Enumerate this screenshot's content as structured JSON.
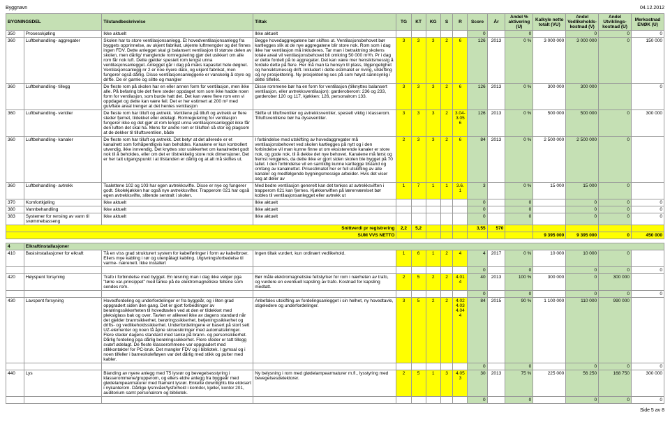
{
  "page": {
    "title": "Byggnavn",
    "date": "04.12.2012",
    "footer": "Side 5 av 8"
  },
  "header": {
    "col_name": "BYGNINGSDEL",
    "col_desc": "Tilstandbeskrivelse",
    "col_tiltak": "Tiltak",
    "tg": "TG",
    "kt": "KT",
    "kg": "KG",
    "s": "S",
    "r": "R",
    "score": "Score",
    "ar": "År",
    "andel": "Andel % aktivering (U)",
    "kalkyle": "Kalkyle netto totalt (VU)",
    "vedl": "Andel Vedlikeholds-kostnad (V)",
    "utv": "Andel Utviklings-kostnad (U)",
    "merk": "Merkostnad ENØK (U)"
  },
  "rows": [
    {
      "id": "350",
      "name": "Prosesskjøling",
      "desc": "Ikke aktuelt",
      "tiltak": "Ikke aktuelt",
      "tg": "",
      "kt": "",
      "kg": "",
      "s": "",
      "r": "",
      "score": "0",
      "ar": "",
      "andel": "0",
      "kalk": "",
      "vedl": "0",
      "utv": "0",
      "merk": "0",
      "yellow_tg": false
    },
    {
      "id": "360",
      "name": "Luftbehandling- aggregater",
      "desc": "Skolen har to store ventilasjonsanlegg. Et hovedventilasjonsanlegg fra byggets opprinnelse, av ukjent fabrikat, ukjente luftmengder og det finnes ingen FDV. Dette anlegget skal gi balansert ventilasjon til største delen av skolen, men dårlig/ manglende romregulering gjør det usikkert om alle rom får nok luft. Dette gjelder spesielt rom lengst unna ventilasjonsanlegget. Anlegget går i dag på maks kapasitet hele døgnet. Ventilasjonsanlegg nr 2 er noe nyere dato, og ukjent fabrikat, men fungerer også dårlig. Disse ventilasjonsanleggene er vanskelig å styre og drifte. De er gamle og slitte og mangler",
      "tiltak": "Begge hovedaggregatene bør skiftes ut. Ventilasjonsbehovet bør kartlegges slik at de nye aggregatene blir store nok. Rom som i dag ikke har ventilasjon må inkluderes. Tar man i betraktning skolens totale areal vil ventilasjonsbehovet bli omkring 50 000 m³/h. Pr i dag er dette fordelt på to aggregater. Det kan være mer hensiktsmessig å fordele dette på flere. Her må man ta hensyn til plass, tilgjengelighet og hensiktsmessig drift. Inkludert i dette estimatet er riving, utskifting og ny prosjektering. Ny prosjektering ses på som høyst sannsynlig i dette tilfellet.",
      "tg": "3",
      "kt": "3",
      "kg": "3",
      "s": "2",
      "r": "6",
      "score": "126",
      "ar": "2013",
      "andel": "0 %",
      "kalk": "3 000 000",
      "vedl": "3 000 000",
      "utv": "0",
      "merk": "150 000",
      "yellow_tg": true
    },
    {
      "id": "360",
      "name": "Luftbehandling- tillegg",
      "desc": "De fleste rom på skolen har en eller annen form for ventilasjon, men ikke alle. På befaring ble det flere steder oppdaget rom som ikke hadde noen form for ventilasjon, som burde hatt det. Det kan være flere rom enn vi oppdaget og dette kan være feil. Det er her estimert at 200 m² med gulvflate areal trenger at det hentes ventilasjon",
      "tiltak": "Disse rommene bør ha en form for ventilasjon (tilknyttes balansert ventilasjon, eller avtrekksventilasjon): garderoberom: 236 og 233, garderober 120 og 117, kjøkken: 126, personalrom 133.",
      "tg": "3",
      "kt": "3",
      "kg": "3",
      "s": "2",
      "r": "6",
      "score": "126",
      "ar": "2013",
      "andel": "0 %",
      "kalk": "300 000",
      "vedl": "300 000",
      "utv": "",
      "merk": "0",
      "yellow_tg": true
    },
    {
      "id": "360",
      "name": "Luftbehandling- ventiler",
      "desc": "De fleste rom har tilluft og avtrekk. Ventilene på tilluft og avtrekk er flere steder fjernet, tildekket eller ødelagt. Romregulering for ventilasjon fungerer ikke og det gjør at rom lengst unna ventilasjonsanlegget ikke får den luften det skal ha. Mens for andre rom er tilluften så stor og plagsom at de dekker til tilluftsventilen, både",
      "tiltak": "Skifte ut tilluftventiler og avtrekksventiler, spesielt viktig i klasserom. Tilluftsventilene bør ha dyseventiler.",
      "tg": "3",
      "kt": "3",
      "kg": "3",
      "s": "2",
      "r": "6",
      "score": "126",
      "ar": "2013",
      "andel": "0 %",
      "kalk": "500 000",
      "vedl": "500 000",
      "utv": "0",
      "merk": "300 000",
      "yellow_tg": true,
      "r_note": "3.04-3.05"
    },
    {
      "id": "360",
      "name": "Luftbehandling- kanaler",
      "desc": "De fleste rom har tilluft og avtrekk. Det betyr at det allerede er et kanalnett som forhåpentligvis kan beholdes. Kanalene er kun kontrollert utvendig, ikke innvendig. Det knyttes stor usikkerhet om kanalnettet godt nok til å beholdes, eller om det er tilstrekkelig store nok dimensjoner. Det er her tatt utgangspunkt i at tilstanden er dårlig og at alt må skiftes ut.",
      "tiltak": "I forbindelse med utskifting av hovedaggregater må ventilasjonsbehovet ved skolen kartlegges på nytt og i den forbindelse vil man kunne finne ut om eksisterende kanaler er store nok, og gode nok, til å dekke det nye behovet. Kanalene må først og fremst rengjøres, da dette ikke er gjort siden skolen ble bygget på 70 tallet. I den forbindelse vil en samtidig kunne kartlegge tilstand og omfang av kanalnettet. Prisestimatet her er full utskifting av alle kanaler og medfølgende bygningsmessige arbeider. Hvis det viser seg at deler av",
      "tg": "2",
      "kt": "3",
      "kg": "3",
      "s": "2",
      "r": "6",
      "score": "84",
      "ar": "2013",
      "andel": "0 %",
      "kalk": "2 500 000",
      "vedl": "2 500 000",
      "utv": "0",
      "merk": "",
      "yellow_tg": true
    },
    {
      "id": "360",
      "name": "Luftbehandling- avtrekk",
      "desc": "Toalettene 102 og 103 har egen avtrekksvifte. Disse er nye og fungerer godt. Skolekjøkken har også nye avtrekksvifter. Trapperom 021 har også egen avtrekksvifte, slitende sentralt i skolen.",
      "tiltak": "Med bedre ventilasjon generelt kan det tenkes at avtrekksviften i trapperom 021 kan fjernes. Kjøkkenviften på lærerværelset bør kobles til ventilasjonsanlegget eller avtrekk ut",
      "tg": "1",
      "kt": "7",
      "kg": "1",
      "s": "1",
      "r": "1",
      "score": "3",
      "ar": "",
      "andel": "0 %",
      "kalk": "15 000",
      "vedl": "15 000",
      "utv": "0",
      "merk": "",
      "yellow_tg": true,
      "r_note": "3.6."
    },
    {
      "id": "370",
      "name": "Komfortkjøling",
      "desc": "Ikke aktuelt",
      "tiltak": "Ikke aktuelt",
      "tg": "",
      "kt": "",
      "kg": "",
      "s": "",
      "r": "",
      "score": "0",
      "ar": "",
      "andel": "0",
      "kalk": "",
      "vedl": "0",
      "utv": "0",
      "merk": "0",
      "yellow_tg": false
    },
    {
      "id": "380",
      "name": "Vannbehandling",
      "desc": "Ikke aktuelt",
      "tiltak": "Ikke aktuelt",
      "tg": "",
      "kt": "",
      "kg": "",
      "s": "",
      "r": "",
      "score": "0",
      "ar": "",
      "andel": "0",
      "kalk": "",
      "vedl": "0",
      "utv": "0",
      "merk": "0",
      "yellow_tg": false
    },
    {
      "id": "383",
      "name": "Systemer for rensing av vann til svømmebasseng",
      "desc": "Ikke aktuelt",
      "tiltak": "Ikke aktuelt",
      "tg": "",
      "kt": "",
      "kg": "",
      "s": "",
      "r": "",
      "score": "0",
      "ar": "",
      "andel": "0",
      "kalk": "",
      "vedl": "0",
      "utv": "0",
      "merk": "0",
      "yellow_tg": false
    }
  ],
  "sum_section": {
    "snitt_label": "Snittverdi pr registrering",
    "sum_label": "SUM VVS NETTO",
    "tg": "2,2",
    "kt": "5,2",
    "score": "3,55",
    "r_sum": "570",
    "kalk": "9 395 000",
    "vedl": "9 395 000",
    "utv": "0",
    "merk": "450 000"
  },
  "section4": {
    "id": "4",
    "name": "Elkraftinstallasjoner"
  },
  "rows2": [
    {
      "id": "410",
      "name": "Basisinstallasjoner for elkraft",
      "desc": "Tå en viss grad strukturert system for kabelføringer i form av kabelbroer. Ellers mye kabling i rør og utenpålagt kabling. Utgivningsforbedelse til varme- nærenett. Ikke installert",
      "tiltak": "Ingen tiltak vurdert, kun ordinært vedlikehold.",
      "tg": "1",
      "kt": "6",
      "kg": "1",
      "s": "2",
      "r": "4",
      "score": "4",
      "ar": "2017",
      "andel": "0 %",
      "kalk": "10 000",
      "vedl": "10 000",
      "utv": "0",
      "merk": "",
      "yellow_tg": true
    },
    {
      "id": "420",
      "name": "Høyspent forsyning",
      "desc": "Trafo i forbindelse med bygget. En løsning man i dag ikke velger pga \"tørre var-prinsippet\" med tanke på de elektromagnetiske feltene som sendes rom.",
      "tiltak": "Bør måle elektromagnetiske feltstyrker for rom i nærheten av trafo, og vurdere en eventuell kapsling av trafo. Kostnad for kapsling medtatt.",
      "tg": "2",
      "kt": "5",
      "kg": "2",
      "s": "2",
      "r": "4",
      "score": "40",
      "ar": "2013",
      "andel": "100 %",
      "kalk": "300 000",
      "vedl": "0",
      "utv": "300 000",
      "merk": "",
      "yellow_tg": true,
      "r_note": "4.01"
    },
    {
      "id": "430",
      "name": "Lavspent forsyning",
      "desc": "Hovedfordeling og underfordelinger er fra byggeår, og i liten grad oppgradert siden den gang. Det er gjort forbedringer av berøringssikkerheten til hovedtavlen ved at den er tildekket med pleksiglass bak og over. Tavlen er alikevel ikke av dagens standard når det gjelder brannsikkerhet, berøringssikkerhet, betjeningssikkerhet og drifts- og vedlikeholdssikkerhet. Underfordelingene er basert på stort sett UZ-elementer og noen få åpne skruesikringer med automatsikringer. Flere steder dagens standard med tanke på brann- og personsikkerhet. Dårlig fordeling pga dårlig berøringssikkerhet. Flere steder er tatt tillegg svært ødelagt. De fleste klasserommene var oppgradert med stikkontakter for PC-bruk. Det mangler FDV og i bibliotek. I gymsal og i noen tilfeller i barneskolefløyen var det dårlig med stikk og pulter med kabler.",
      "tiltak": "Anbefales utskifting av fordelingsanlegget i sin helhet, ny hovedtavle, stigeledere og underfordelinger.",
      "tg": "3",
      "kt": "5",
      "kg": "2",
      "s": "2",
      "r": "4",
      "score": "84",
      "ar": "2015",
      "andel": "90 %",
      "kalk": "1 100 000",
      "vedl": "110 000",
      "utv": "990 000",
      "merk": "",
      "yellow_tg": true,
      "r_note": "4.02 4.03 4.04"
    },
    {
      "id": "440",
      "name": "Lys",
      "desc": "Blanding av nyere anlegg med T5 lysrør og bevegelsesstyring i klasserommene/grupperom, og ellers eldre anlegg fra byggeår med glødelampearmaturer med filament lysrør. Enkelte downlights ble eloksert i nykanterom. Dårlige lysnivåer/lysforhold i korridor, kjeller, kontor 201, auditorium samt personalrom og bibliotek.",
      "tiltak": "Ny belysning i rom med glødelampearmaturer m.fl., lysstyring med bevegelsesdetektorer.",
      "tg": "2",
      "kt": "5",
      "kg": "1",
      "s": "3",
      "r": "3",
      "score": "30",
      "ar": "2013",
      "andel": "75 %",
      "kalk": "225 000",
      "vedl": "56 250",
      "utv": "168 750",
      "merk": "300 000",
      "yellow_tg": true,
      "r_note": "4.05"
    }
  ],
  "colors": {
    "green": "#c5e0b4",
    "yellow": "#ffff00"
  }
}
